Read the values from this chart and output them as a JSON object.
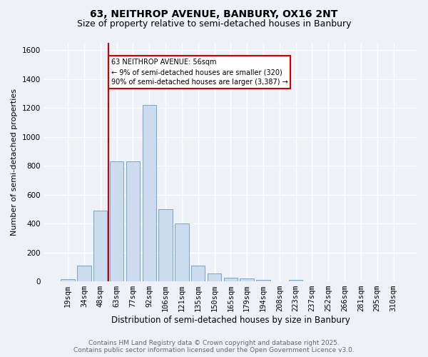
{
  "title1": "63, NEITHROP AVENUE, BANBURY, OX16 2NT",
  "title2": "Size of property relative to semi-detached houses in Banbury",
  "xlabel": "Distribution of semi-detached houses by size in Banbury",
  "ylabel": "Number of semi-detached properties",
  "bin_labels": [
    "19sqm",
    "34sqm",
    "48sqm",
    "63sqm",
    "77sqm",
    "92sqm",
    "106sqm",
    "121sqm",
    "135sqm",
    "150sqm",
    "165sqm",
    "179sqm",
    "194sqm",
    "208sqm",
    "223sqm",
    "237sqm",
    "252sqm",
    "266sqm",
    "281sqm",
    "295sqm",
    "310sqm"
  ],
  "bar_values": [
    15,
    110,
    490,
    830,
    830,
    1220,
    500,
    400,
    110,
    55,
    25,
    20,
    10,
    0,
    10,
    0,
    0,
    0,
    0,
    0,
    0
  ],
  "bar_color": "#ccdcee",
  "bar_edge_color": "#6fa8d0",
  "redline_index": 2.5,
  "annotation_text": "63 NEITHROP AVENUE: 56sqm\n← 9% of semi-detached houses are smaller (320)\n90% of semi-detached houses are larger (3,387) →",
  "footer": "Contains HM Land Registry data © Crown copyright and database right 2025.\nContains public sector information licensed under the Open Government Licence v3.0.",
  "ylim": [
    0,
    1650
  ],
  "yticks": [
    0,
    200,
    400,
    600,
    800,
    1000,
    1200,
    1400,
    1600
  ],
  "bg_color": "#eef2f8",
  "grid_color": "#ffffff",
  "annotation_box_color": "#ffffff",
  "annotation_box_edge": "#cc0000",
  "redline_color": "#cc0000",
  "title_fontsize": 10,
  "subtitle_fontsize": 9,
  "ylabel_fontsize": 8,
  "xlabel_fontsize": 8.5,
  "tick_fontsize": 7.5,
  "footer_fontsize": 6.5,
  "footer_color": "#666666"
}
